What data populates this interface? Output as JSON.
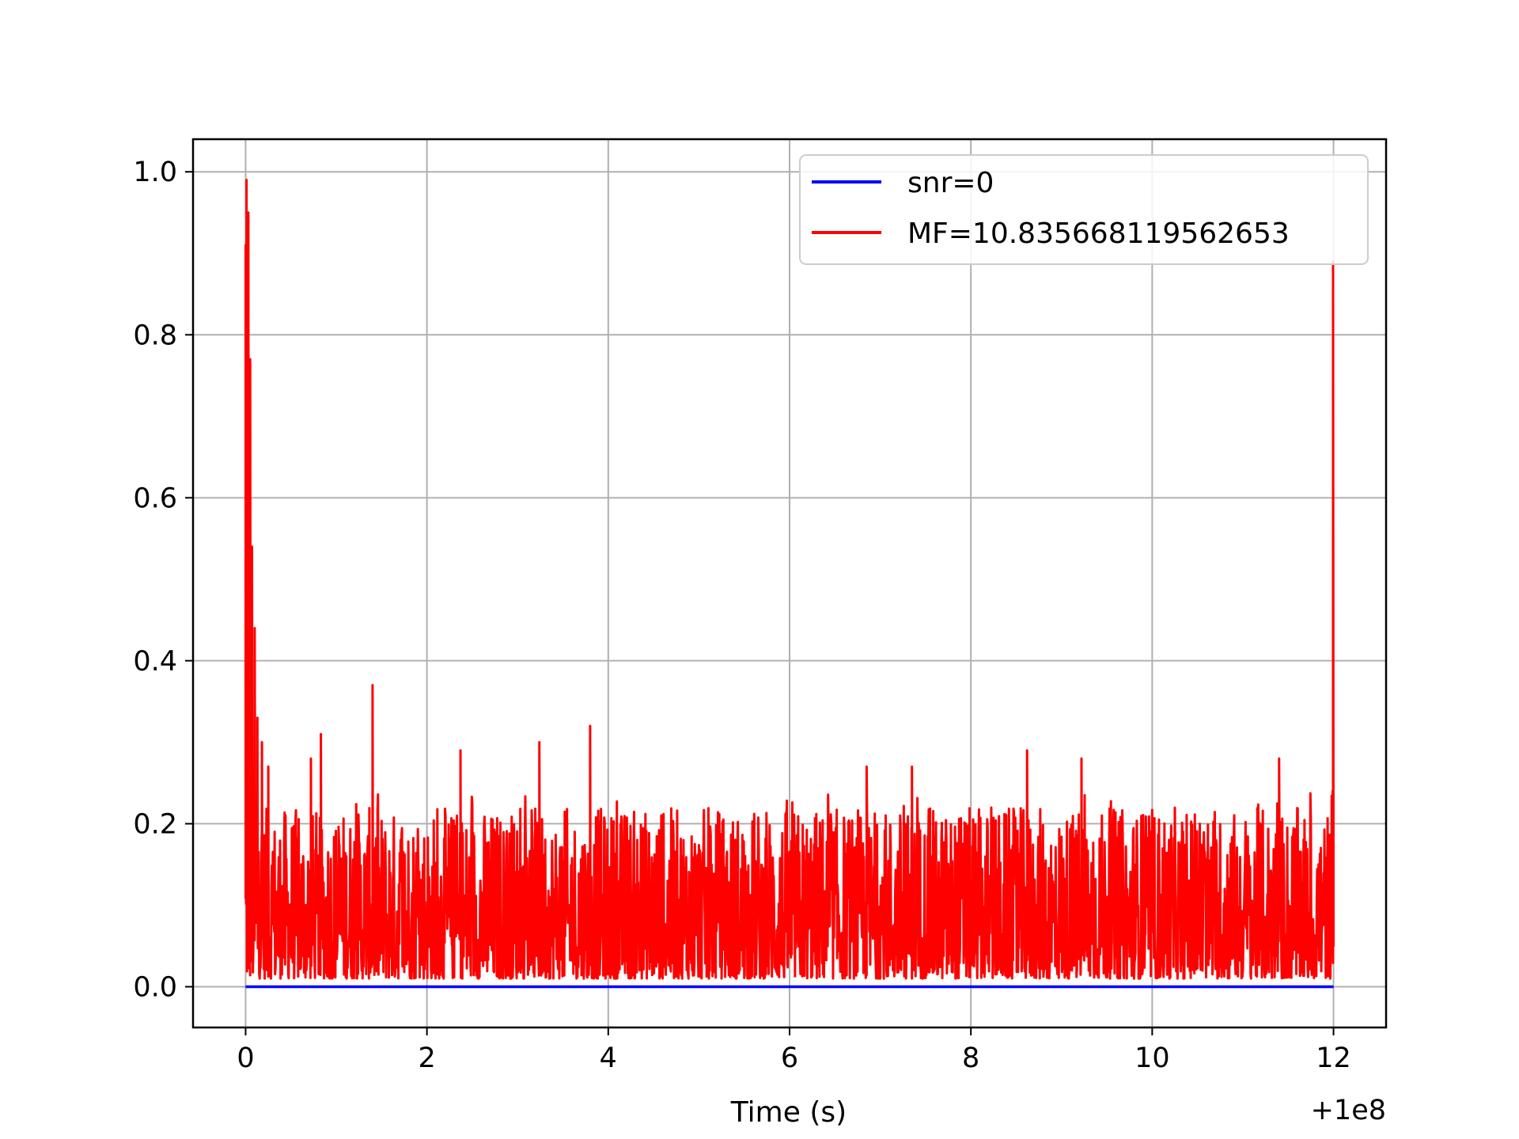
{
  "chart_data": {
    "type": "line",
    "xlabel": "Time (s)",
    "ylabel": "",
    "x_offset_label": "+1e8",
    "xlim": [
      -0.58,
      12.58
    ],
    "ylim": [
      -0.05,
      1.04
    ],
    "x_ticks": [
      0,
      2,
      4,
      6,
      8,
      10,
      12
    ],
    "y_ticks": [
      0.0,
      0.2,
      0.4,
      0.6,
      0.8,
      1.0
    ],
    "x_tick_labels": [
      "0",
      "2",
      "4",
      "6",
      "8",
      "10",
      "12"
    ],
    "y_tick_labels": [
      "0.0",
      "0.2",
      "0.4",
      "0.6",
      "0.8",
      "1.0"
    ],
    "grid": true,
    "legend_position": "upper-right",
    "series": [
      {
        "name": "snr=0",
        "color": "#0000ff",
        "x": [
          0,
          12
        ],
        "y": [
          0.0,
          0.0
        ]
      },
      {
        "name": "MF=10.835668119562653",
        "color": "#ff0000",
        "x_range": [
          0,
          12
        ],
        "num_points": 2400,
        "noise_floor": 0.01,
        "noise_typical_peak": 0.2,
        "peaks": [
          {
            "x": 0.0,
            "y": 0.91
          },
          {
            "x": 0.01,
            "y": 0.99
          },
          {
            "x": 0.03,
            "y": 0.95
          },
          {
            "x": 0.05,
            "y": 0.77
          },
          {
            "x": 0.07,
            "y": 0.54
          },
          {
            "x": 0.1,
            "y": 0.44
          },
          {
            "x": 0.13,
            "y": 0.33
          },
          {
            "x": 0.18,
            "y": 0.3
          },
          {
            "x": 0.25,
            "y": 0.27
          },
          {
            "x": 0.72,
            "y": 0.28
          },
          {
            "x": 0.83,
            "y": 0.31
          },
          {
            "x": 1.4,
            "y": 0.37
          },
          {
            "x": 2.37,
            "y": 0.29
          },
          {
            "x": 3.24,
            "y": 0.3
          },
          {
            "x": 3.8,
            "y": 0.32
          },
          {
            "x": 6.85,
            "y": 0.27
          },
          {
            "x": 7.35,
            "y": 0.27
          },
          {
            "x": 8.62,
            "y": 0.29
          },
          {
            "x": 9.22,
            "y": 0.28
          },
          {
            "x": 11.4,
            "y": 0.28
          },
          {
            "x": 11.98,
            "y": 0.21
          },
          {
            "x": 11.995,
            "y": 0.89
          }
        ]
      }
    ]
  }
}
